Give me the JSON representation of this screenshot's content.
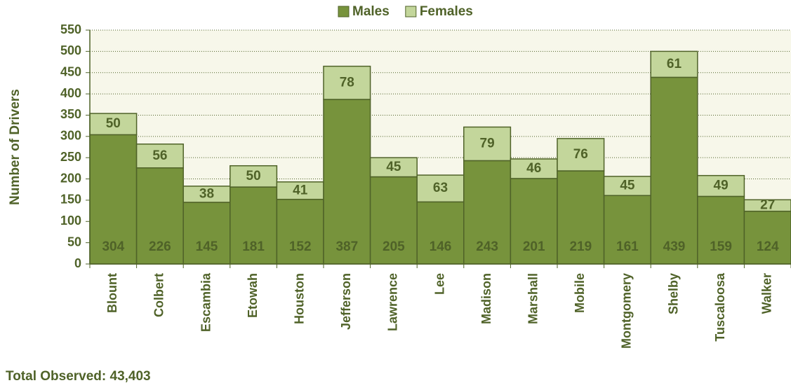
{
  "chart_data": {
    "type": "stacked_bar",
    "y_label": "Number of Drivers",
    "footnote": "Total Observed:  43,403",
    "categories": [
      "Blount",
      "Colbert",
      "Escambia",
      "Etowah",
      "Houston",
      "Jefferson",
      "Lawrence",
      "Lee",
      "Madison",
      "Marshall",
      "Mobile",
      "Montgomery",
      "Shelby",
      "Tuscaloosa",
      "Walker"
    ],
    "series": [
      {
        "name": "Males",
        "color": "#77933c",
        "values": [
          304,
          226,
          145,
          181,
          152,
          387,
          205,
          146,
          243,
          201,
          219,
          161,
          439,
          159,
          124
        ]
      },
      {
        "name": "Females",
        "color": "#c3d69b",
        "values": [
          50,
          56,
          38,
          50,
          41,
          78,
          45,
          63,
          79,
          46,
          76,
          45,
          61,
          49,
          27
        ]
      }
    ],
    "ylim": [
      0,
      550
    ],
    "yticks": [
      0,
      50,
      100,
      150,
      200,
      250,
      300,
      350,
      400,
      450,
      500,
      550
    ],
    "grid": true,
    "legend": "top"
  }
}
